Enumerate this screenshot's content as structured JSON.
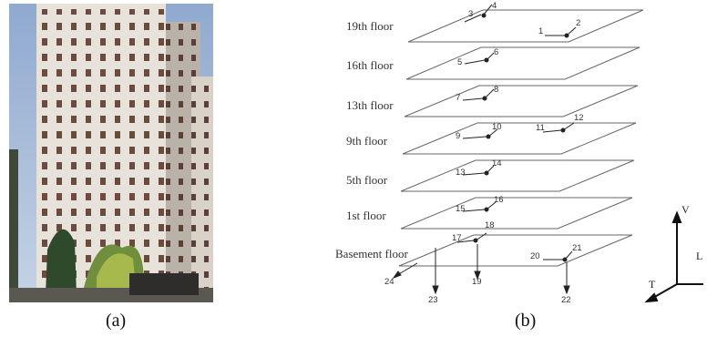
{
  "panels": {
    "a": "(a)",
    "b": "(b)"
  },
  "floors": [
    {
      "name": "19th floor",
      "sensors": [
        "3",
        "4",
        "1",
        "2"
      ]
    },
    {
      "name": "16th floor",
      "sensors": [
        "5",
        "6"
      ]
    },
    {
      "name": "13th floor",
      "sensors": [
        "7",
        "8"
      ]
    },
    {
      "name": "9th floor",
      "sensors": [
        "9",
        "10",
        "11",
        "12"
      ]
    },
    {
      "name": "5th floor",
      "sensors": [
        "13",
        "14"
      ]
    },
    {
      "name": "1st floor",
      "sensors": [
        "15",
        "16"
      ]
    },
    {
      "name": "Basement floor",
      "sensors": [
        "17",
        "18",
        "20",
        "21",
        "24",
        "23",
        "19",
        "22"
      ]
    }
  ],
  "axes": {
    "vertical": "V",
    "transverse": "T",
    "longitudinal": "L"
  }
}
